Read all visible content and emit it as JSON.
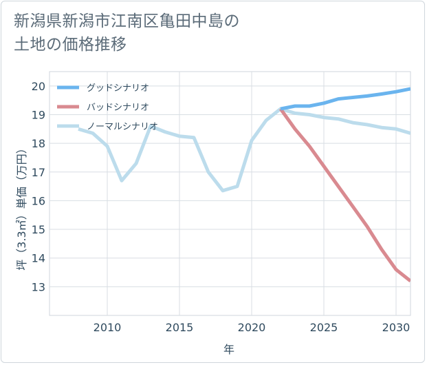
{
  "title_lines": [
    "新潟県新潟市江南区亀田中島の",
    "土地の価格推移"
  ],
  "chart_data": {
    "type": "line",
    "xlabel": "年",
    "ylabel": "坪（3.3㎡）単価（万円）",
    "xlim": [
      2006,
      2031
    ],
    "ylim": [
      12,
      20.5
    ],
    "xticks": [
      2010,
      2015,
      2020,
      2025,
      2030
    ],
    "yticks": [
      13,
      14,
      15,
      16,
      17,
      18,
      19,
      20
    ],
    "grid": true,
    "legend_position": "top-left",
    "series": [
      {
        "name": "グッドシナリオ",
        "color": "#6ab4ee",
        "x": [
          2022,
          2023,
          2024,
          2025,
          2026,
          2027,
          2028,
          2029,
          2030,
          2031
        ],
        "y": [
          19.2,
          19.3,
          19.3,
          19.4,
          19.55,
          19.6,
          19.65,
          19.72,
          19.8,
          19.9
        ]
      },
      {
        "name": "バッドシナリオ",
        "color": "#d98a90",
        "x": [
          2022,
          2023,
          2024,
          2025,
          2026,
          2027,
          2028,
          2029,
          2030,
          2031
        ],
        "y": [
          19.2,
          18.5,
          17.9,
          17.2,
          16.5,
          15.8,
          15.1,
          14.3,
          13.6,
          13.2
        ]
      },
      {
        "name": "ノーマルシナリオ",
        "color": "#bcdcec",
        "x": [
          2008,
          2009,
          2010,
          2011,
          2012,
          2013,
          2014,
          2015,
          2016,
          2017,
          2018,
          2019,
          2020,
          2021,
          2022,
          2023,
          2024,
          2025,
          2026,
          2027,
          2028,
          2029,
          2030,
          2031
        ],
        "y": [
          18.5,
          18.35,
          17.9,
          16.7,
          17.3,
          18.6,
          18.4,
          18.25,
          18.2,
          17.0,
          16.35,
          16.5,
          18.1,
          18.8,
          19.2,
          19.05,
          19.0,
          18.9,
          18.85,
          18.72,
          18.65,
          18.55,
          18.5,
          18.35
        ]
      }
    ]
  }
}
